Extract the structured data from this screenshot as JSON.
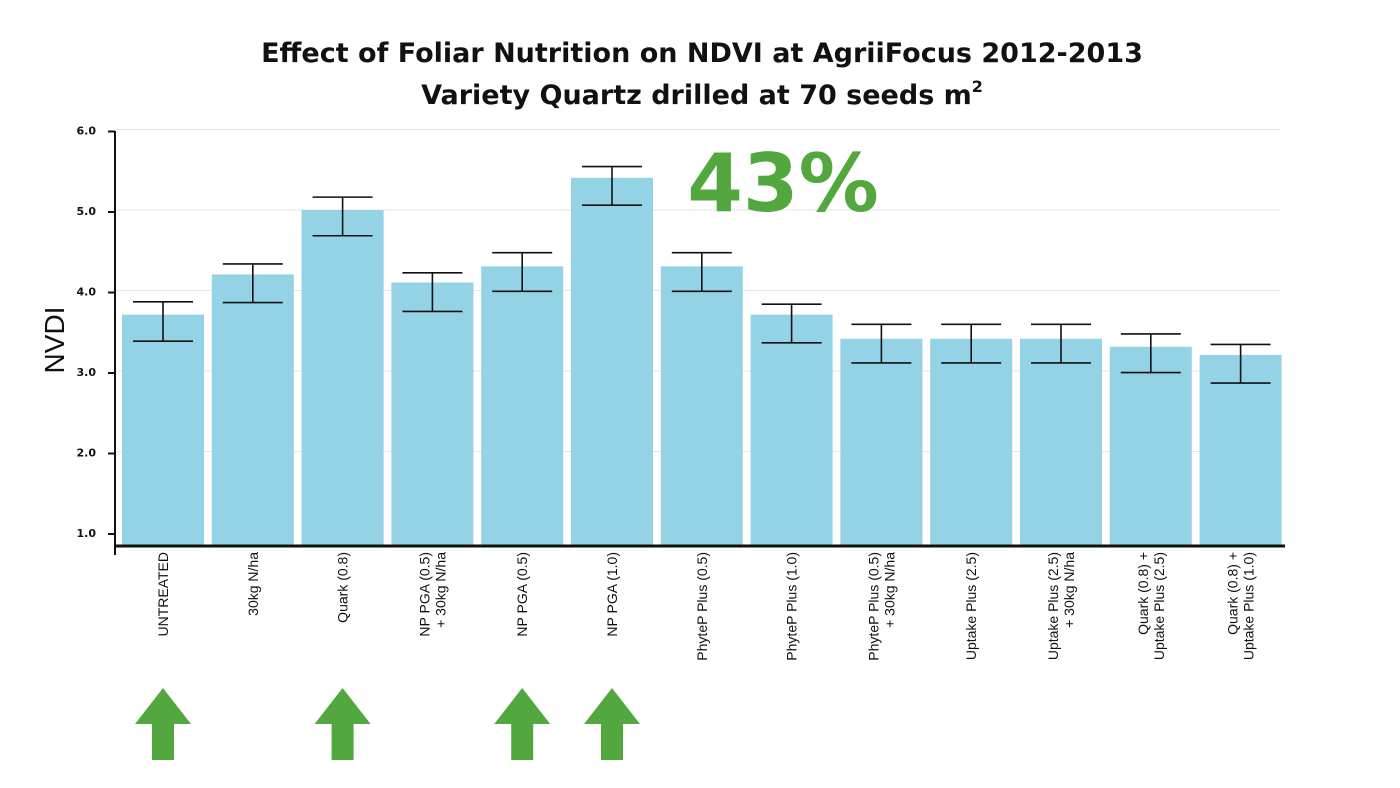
{
  "chart_data": {
    "type": "bar",
    "title_line1": "Effect of Foliar Nutrition on NDVI at AgriiFocus 2012-2013",
    "title_line2": "Variety Quartz drilled at 70 seeds m",
    "title_superscript": "2",
    "xlabel": "",
    "ylabel": "NVDI",
    "ylim": [
      1.0,
      6.0
    ],
    "yticks": [
      "1.0",
      "2.0",
      "3.0",
      "4.0",
      "5.0",
      "6.0"
    ],
    "grid": true,
    "categories": [
      [
        "UNTREATED"
      ],
      [
        "30kg N/ha"
      ],
      [
        "Quark (0.8)"
      ],
      [
        "NP PGA (0.5)",
        "+ 30kg N/ha"
      ],
      [
        "NP PGA (0.5)"
      ],
      [
        "NP PGA (1.0)"
      ],
      [
        "PhyteP Plus (0.5)"
      ],
      [
        "PhyteP Plus (1.0)"
      ],
      [
        "PhyteP Plus (0.5)",
        "+ 30kg N/ha"
      ],
      [
        "Uptake Plus (2.5)"
      ],
      [
        "Uptake Plus (2.5)",
        "+ 30kg N/ha"
      ],
      [
        "Quark (0.8) +",
        "Uptake Plus (2.5)"
      ],
      [
        "Quark (0.8) +",
        "Uptake Plus (1.0)"
      ]
    ],
    "values": [
      3.7,
      4.2,
      5.0,
      4.1,
      4.3,
      5.4,
      4.3,
      3.7,
      3.4,
      3.4,
      3.4,
      3.3,
      3.2
    ],
    "error_low": [
      3.37,
      3.85,
      4.68,
      3.74,
      3.99,
      5.06,
      3.99,
      3.35,
      3.1,
      3.1,
      3.1,
      2.98,
      2.85
    ],
    "error_high": [
      3.86,
      4.33,
      5.16,
      4.22,
      4.47,
      5.54,
      4.47,
      3.83,
      3.58,
      3.58,
      3.58,
      3.46,
      3.33
    ],
    "annotation": "43%",
    "highlighted_categories": [
      0,
      2,
      4,
      5
    ]
  },
  "colors": {
    "bar": "#94d3e6",
    "axis": "#111111",
    "grid": "#e6e6e6",
    "error_bar": "#111111",
    "accent_green": "#52a83e",
    "title": "#111111"
  },
  "icons": {
    "highlight_marker": "arrow-up-icon"
  }
}
